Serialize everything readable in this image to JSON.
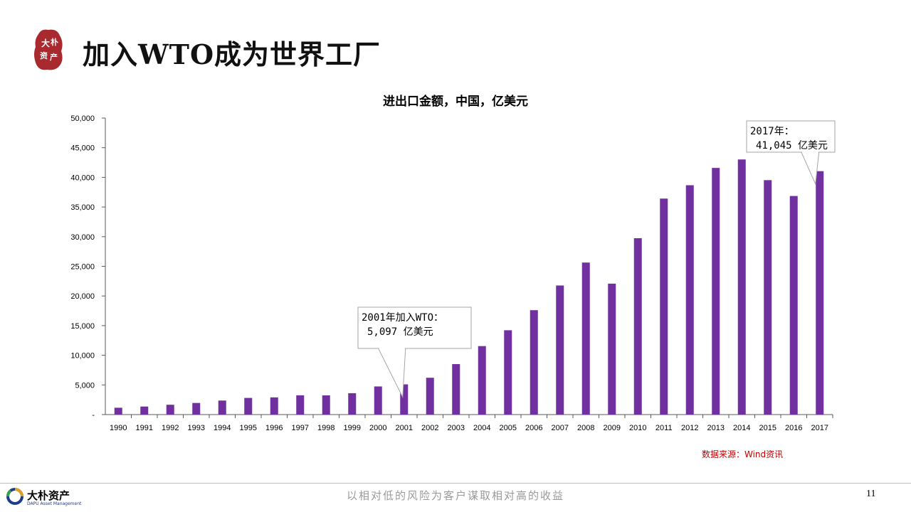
{
  "header": {
    "title": "加入WTO成为世界工厂",
    "logo_chars": [
      "大",
      "朴",
      "资",
      "产"
    ]
  },
  "chart_data": {
    "type": "bar",
    "title": "进出口金额，中国，亿美元",
    "xlabel": "",
    "ylabel": "",
    "ylim": [
      0,
      50000
    ],
    "yticks": [
      0,
      5000,
      10000,
      15000,
      20000,
      25000,
      30000,
      35000,
      40000,
      45000,
      50000
    ],
    "ytick_labels": [
      "-",
      "5,000",
      "10,000",
      "15,000",
      "20,000",
      "25,000",
      "30,000",
      "35,000",
      "40,000",
      "45,000",
      "50,000"
    ],
    "categories": [
      "1990",
      "1991",
      "1992",
      "1993",
      "1994",
      "1995",
      "1996",
      "1997",
      "1998",
      "1999",
      "2000",
      "2001",
      "2002",
      "2003",
      "2004",
      "2005",
      "2006",
      "2007",
      "2008",
      "2009",
      "2010",
      "2011",
      "2012",
      "2013",
      "2014",
      "2015",
      "2016",
      "2017"
    ],
    "values": [
      1154,
      1357,
      1655,
      1957,
      2366,
      2809,
      2899,
      3252,
      3239,
      3606,
      4743,
      5097,
      6208,
      8510,
      11546,
      14219,
      17604,
      21766,
      25633,
      22075,
      29740,
      36419,
      38671,
      41590,
      43015,
      39530,
      36856,
      41045
    ],
    "bar_color": "#7030a0",
    "annotations": [
      {
        "category": "2001",
        "line1": "2001年加入WTO：",
        "line2": "5,097 亿美元"
      },
      {
        "category": "2017",
        "line1": "2017年：",
        "line2": "41,045 亿美元"
      }
    ],
    "grid": false,
    "legend": "none"
  },
  "source": "数据来源：Wind资讯",
  "footer": {
    "logo_name": "大朴资产",
    "logo_sub": "DAPU Asset Management",
    "slogan": "以相对低的风险为客户谋取相对高的收益",
    "page_number": "11"
  },
  "colors": {
    "bar": "#7030a0",
    "seal": "#a8292e",
    "source": "#c00000"
  }
}
